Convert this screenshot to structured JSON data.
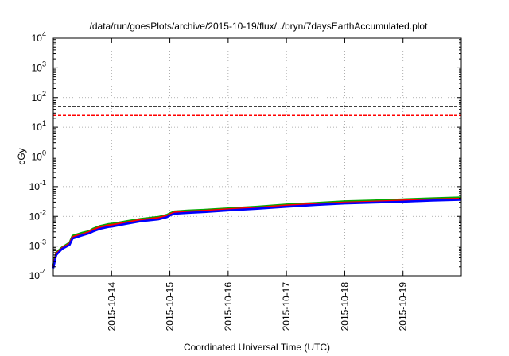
{
  "chart_data": {
    "type": "line",
    "title": "/data/run/goesPlots/archive/2015-10-19/flux/../bryn/7daysEarthAccumulated.plot",
    "xlabel": "Coordinated Universal Time (UTC)",
    "ylabel": "cGy",
    "x_ticks": [
      "2015-10-14",
      "2015-10-15",
      "2015-10-16",
      "2015-10-17",
      "2015-10-18",
      "2015-10-19"
    ],
    "x_tick_days": [
      1,
      2,
      3,
      4,
      5,
      6
    ],
    "xlim_days": [
      0,
      7
    ],
    "ylim": [
      0.0001,
      10000
    ],
    "y_scale": "log",
    "y_tick_exponents": [
      -4,
      -3,
      -2,
      -1,
      0,
      1,
      2,
      3,
      4
    ],
    "y_tick_base": "10",
    "grid": true,
    "reference_lines": [
      {
        "value": 50,
        "color": "#000000",
        "style": "dashed"
      },
      {
        "value": 25,
        "color": "#ff0000",
        "style": "dashed"
      }
    ],
    "x": [
      0.0,
      0.05,
      0.15,
      0.28,
      0.33,
      0.5,
      0.62,
      0.68,
      0.8,
      0.95,
      1.0,
      1.1,
      1.25,
      1.5,
      1.8,
      1.95,
      2.0,
      2.08,
      2.3,
      2.6,
      3.0,
      3.5,
      4.0,
      4.5,
      5.0,
      5.5,
      6.0,
      6.5,
      7.0
    ],
    "series": [
      {
        "color": "#00aa00",
        "values": [
          0.00022,
          0.0006,
          0.0009,
          0.0013,
          0.0022,
          0.0028,
          0.0032,
          0.0038,
          0.0047,
          0.0055,
          0.0056,
          0.006,
          0.0068,
          0.0082,
          0.0095,
          0.0112,
          0.0125,
          0.0145,
          0.0155,
          0.0165,
          0.0185,
          0.021,
          0.025,
          0.028,
          0.032,
          0.034,
          0.037,
          0.04,
          0.043
        ]
      },
      {
        "color": "#ff0000",
        "values": [
          0.0002,
          0.00055,
          0.00085,
          0.0012,
          0.002,
          0.0025,
          0.003,
          0.0035,
          0.0043,
          0.005,
          0.0051,
          0.0055,
          0.0062,
          0.0076,
          0.0088,
          0.0104,
          0.0117,
          0.0135,
          0.0144,
          0.0153,
          0.0172,
          0.0195,
          0.023,
          0.026,
          0.029,
          0.031,
          0.034,
          0.037,
          0.039
        ]
      },
      {
        "color": "#0000ff",
        "values": [
          0.00018,
          0.0005,
          0.0008,
          0.0011,
          0.0018,
          0.0023,
          0.0027,
          0.0031,
          0.0038,
          0.0044,
          0.0045,
          0.0049,
          0.0056,
          0.0068,
          0.0079,
          0.0094,
          0.0107,
          0.0122,
          0.0131,
          0.014,
          0.0158,
          0.018,
          0.021,
          0.024,
          0.027,
          0.029,
          0.031,
          0.034,
          0.036
        ]
      }
    ]
  }
}
